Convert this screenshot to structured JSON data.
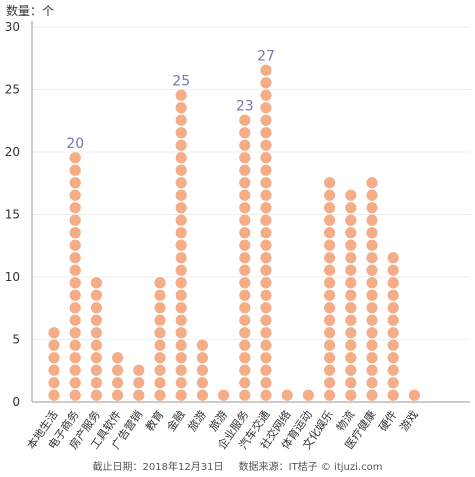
{
  "chart_data": {
    "type": "bar",
    "unit_label": "数量：个",
    "categories": [
      "本地生活",
      "电子商务",
      "房产服务",
      "工具软件",
      "广告营销",
      "教育",
      "金融",
      "旅游",
      "旅游",
      "企业服务",
      "汽车交通",
      "社交网络",
      "体育运动",
      "文化娱乐",
      "物流",
      "医疗健康",
      "硬件",
      "游戏"
    ],
    "values": [
      6,
      20,
      10,
      4,
      3,
      10,
      25,
      5,
      1,
      23,
      27,
      1,
      1,
      18,
      17,
      18,
      12,
      1
    ],
    "data_labels": [
      {
        "index": 1,
        "text": "20"
      },
      {
        "index": 6,
        "text": "25"
      },
      {
        "index": 9,
        "text": "23"
      },
      {
        "index": 10,
        "text": "27"
      }
    ],
    "ylim": [
      0,
      30
    ],
    "yticks": [
      0,
      5,
      10,
      15,
      20,
      25,
      30
    ],
    "grid": true,
    "colors": {
      "dot": "#f4ad87",
      "label": "#7b74b5",
      "grid": "#eeeeee",
      "axis": "#999999"
    }
  },
  "footer": {
    "date_text": "截止日期：2018年12月31日",
    "source_text": "数据来源：IT桔子 © itjuzi.com"
  }
}
